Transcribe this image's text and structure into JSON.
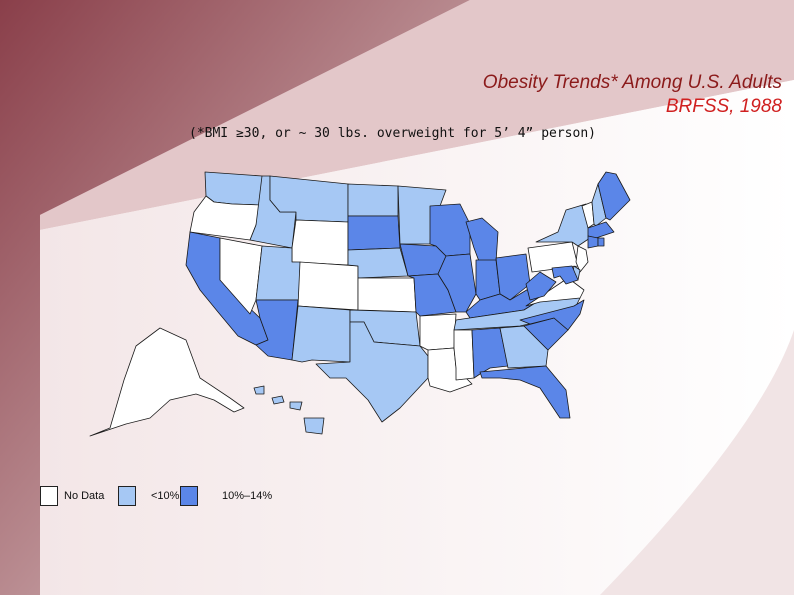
{
  "title": "Obesity Trends* Among U.S. Adults",
  "subtitle_line": "BRFSS, 1988",
  "footnote": "(*BMI ≥30, or ~ 30 lbs. overweight for 5’ 4” person)",
  "colors": {
    "no_data": "#ffffff",
    "lt10": "#a6c8f4",
    "10_14": "#5b86e8",
    "border": "#1a1a1a",
    "title_dark": "#8b1a1a",
    "title_red": "#d02020",
    "bg_maroon": "#9a5a64"
  },
  "legend": [
    {
      "key": "no_data",
      "label": "No Data"
    },
    {
      "key": "lt10",
      "label": "<10%"
    },
    {
      "key": "10_14",
      "label": "10%–14%"
    }
  ],
  "states": {
    "WA": "lt10",
    "OR": "no_data",
    "CA": "10_14",
    "NV": "no_data",
    "ID": "lt10",
    "MT": "lt10",
    "WY": "no_data",
    "UT": "lt10",
    "AZ": "10_14",
    "CO": "no_data",
    "NM": "lt10",
    "ND": "lt10",
    "SD": "10_14",
    "NE": "lt10",
    "KS": "no_data",
    "OK": "lt10",
    "TX": "lt10",
    "MN": "lt10",
    "IA": "10_14",
    "MO": "10_14",
    "AR": "no_data",
    "LA": "no_data",
    "WI": "10_14",
    "IL": "10_14",
    "MI": "10_14",
    "IN": "10_14",
    "OH": "10_14",
    "KY": "10_14",
    "TN": "lt10",
    "MS": "no_data",
    "AL": "10_14",
    "GA": "lt10",
    "FL": "10_14",
    "SC": "10_14",
    "NC": "10_14",
    "VA": "no_data",
    "WV": "10_14",
    "PA": "no_data",
    "NY": "lt10",
    "VT": "no_data",
    "NH": "lt10",
    "ME": "10_14",
    "MA": "10_14",
    "CT": "10_14",
    "RI": "10_14",
    "NJ": "no_data",
    "DE": "lt10",
    "MD": "10_14",
    "AK": "no_data",
    "HI": "lt10"
  }
}
